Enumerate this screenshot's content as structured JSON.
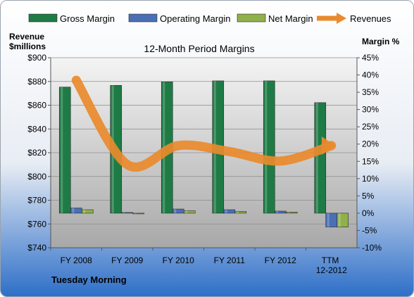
{
  "chart_data": {
    "type": "bar",
    "title": "12-Month Period Margins",
    "company": "Tuesday Morning",
    "categories": [
      "FY 2008",
      "FY 2009",
      "FY 2010",
      "FY 2011",
      "FY 2012",
      "TTM 12-2012"
    ],
    "left_axis_title": [
      "Revenue",
      "$millions"
    ],
    "right_axis_title": "Margin %",
    "left_ylim": [
      740,
      900
    ],
    "left_ticks": [
      "$740",
      "$760",
      "$780",
      "$800",
      "$820",
      "$840",
      "$860",
      "$880",
      "$900"
    ],
    "right_ylim": [
      -10,
      45
    ],
    "right_ticks": [
      "-10%",
      "-5%",
      "0%",
      "5%",
      "10%",
      "15%",
      "20%",
      "25%",
      "30%",
      "35%",
      "40%",
      "45%"
    ],
    "bar_series": [
      {
        "name": "Gross Margin",
        "color": "#1e7b45",
        "values": [
          36.5,
          37.0,
          38.0,
          38.3,
          38.3,
          32.0
        ]
      },
      {
        "name": "Operating Margin",
        "color": "#4a6fb5",
        "values": [
          1.5,
          0.2,
          1.2,
          1.0,
          0.6,
          -4.0
        ]
      },
      {
        "name": "Net Margin",
        "color": "#8fb04a",
        "values": [
          1.0,
          -0.2,
          0.7,
          0.5,
          0.3,
          -4.0
        ]
      }
    ],
    "line_series": {
      "name": "Revenues",
      "color": "#e98a2c",
      "values": [
        881,
        810,
        826,
        821,
        813,
        826
      ]
    },
    "grid": true,
    "legend_position": "top"
  }
}
